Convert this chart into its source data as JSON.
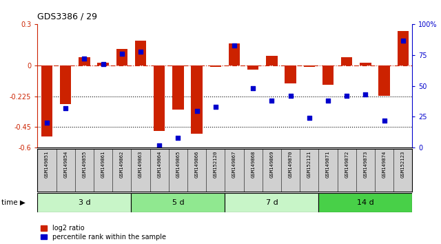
{
  "title": "GDS3386 / 29",
  "samples": [
    "GSM149851",
    "GSM149854",
    "GSM149855",
    "GSM149861",
    "GSM149862",
    "GSM149863",
    "GSM149864",
    "GSM149865",
    "GSM149866",
    "GSM152120",
    "GSM149867",
    "GSM149868",
    "GSM149869",
    "GSM149870",
    "GSM152121",
    "GSM149871",
    "GSM149872",
    "GSM149873",
    "GSM149874",
    "GSM152123"
  ],
  "log2_ratio": [
    -0.52,
    -0.28,
    0.06,
    0.02,
    0.12,
    0.18,
    -0.48,
    -0.32,
    -0.5,
    -0.01,
    0.16,
    -0.03,
    0.07,
    -0.13,
    -0.01,
    -0.14,
    0.06,
    0.02,
    -0.22,
    0.25
  ],
  "percentile_rank": [
    20,
    32,
    72,
    68,
    76,
    78,
    2,
    8,
    30,
    33,
    83,
    48,
    38,
    42,
    24,
    38,
    42,
    43,
    22,
    87
  ],
  "groups": [
    {
      "label": "3 d",
      "start": 0,
      "end": 5,
      "color": "#c8f5c8"
    },
    {
      "label": "5 d",
      "start": 5,
      "end": 10,
      "color": "#90e890"
    },
    {
      "label": "7 d",
      "start": 10,
      "end": 15,
      "color": "#c8f5c8"
    },
    {
      "label": "14 d",
      "start": 15,
      "end": 20,
      "color": "#48d048"
    }
  ],
  "ylim_left": [
    -0.6,
    0.3
  ],
  "ylim_right": [
    0,
    100
  ],
  "yticks_left": [
    -0.6,
    -0.45,
    -0.225,
    0.0,
    0.3
  ],
  "yticks_right": [
    0,
    25,
    50,
    75,
    100
  ],
  "ytick_labels_left": [
    "-0.6",
    "-0.45",
    "-0.225",
    "0",
    "0.3"
  ],
  "ytick_labels_right": [
    "0",
    "25",
    "50",
    "75",
    "100%"
  ],
  "hline_y": 0.0,
  "dotted_lines": [
    -0.225,
    -0.45
  ],
  "bar_color_red": "#cc2200",
  "bar_color_blue": "#0000cc",
  "bar_width": 0.6,
  "background_color": "#ffffff",
  "legend_red": "log2 ratio",
  "legend_blue": "percentile rank within the sample",
  "label_bg": "#d0d0d0"
}
